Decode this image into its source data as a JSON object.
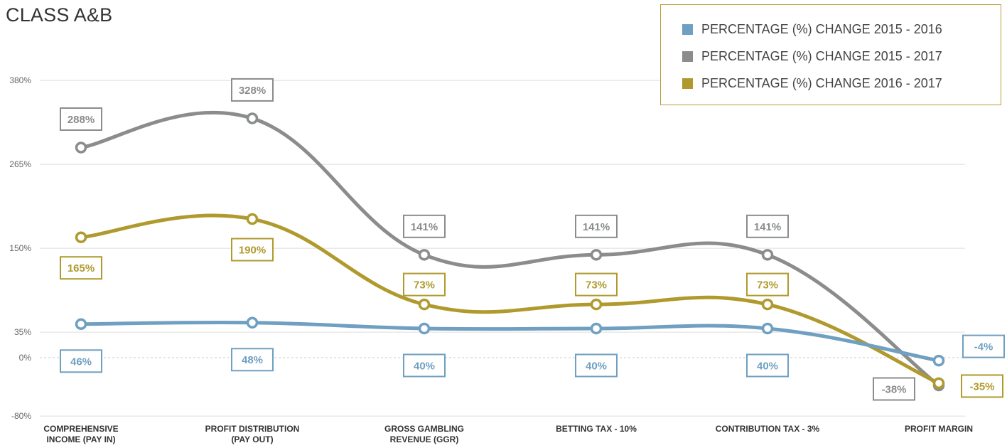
{
  "chart_data": {
    "type": "line",
    "title": "CLASS A&B",
    "categories": [
      [
        "COMPREHENSIVE",
        "INCOME (PAY IN)"
      ],
      [
        "PROFIT DISTRIBUTION",
        "(PAY OUT)"
      ],
      [
        "GROSS GAMBLING",
        "REVENUE (GGR)"
      ],
      [
        "BETTING TAX - 10%"
      ],
      [
        "CONTRIBUTION TAX - 3%"
      ],
      [
        "PROFIT MARGIN"
      ]
    ],
    "y_ticks": [
      {
        "value": 380,
        "label": "380%"
      },
      {
        "value": 265,
        "label": "265%"
      },
      {
        "value": 150,
        "label": "150%"
      },
      {
        "value": 35,
        "label": "35%"
      },
      {
        "value": 0,
        "label": "0%"
      },
      {
        "value": -80,
        "label": "-80%"
      }
    ],
    "ylim": [
      -80,
      380
    ],
    "grid": true,
    "legend_position": "top-right",
    "series": [
      {
        "name": "PERCENTAGE (%) CHANGE 2015 - 2016",
        "color": "#6f9fc1",
        "values": [
          46,
          48,
          40,
          40,
          40,
          -4
        ],
        "labels": [
          "46%",
          "48%",
          "40%",
          "40%",
          "40%",
          "-4%"
        ]
      },
      {
        "name": "PERCENTAGE (%) CHANGE 2015 - 2017",
        "color": "#8a8d8c",
        "values": [
          288,
          328,
          141,
          141,
          141,
          -38
        ],
        "labels": [
          "288%",
          "328%",
          "141%",
          "141%",
          "141%",
          "-38%"
        ]
      },
      {
        "name": "PERCENTAGE (%) CHANGE 2016 - 2017",
        "color": "#b09a2e",
        "values": [
          165,
          190,
          73,
          73,
          73,
          -35
        ],
        "labels": [
          "165%",
          "190%",
          "73%",
          "73%",
          "73%",
          "-35%"
        ]
      }
    ]
  }
}
